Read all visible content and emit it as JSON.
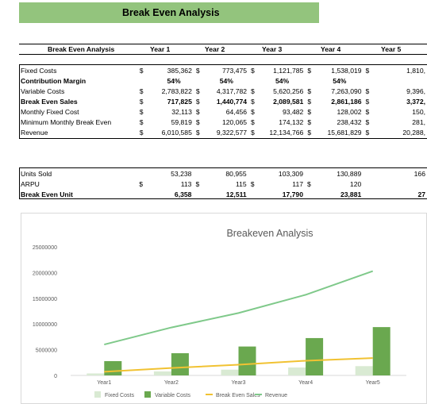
{
  "banner_title": "Break Even Analysis",
  "table_header": {
    "label": "Break Even Analysis",
    "years": [
      "Year 1",
      "Year 2",
      "Year 3",
      "Year 4",
      "Year 5"
    ]
  },
  "rows": [
    {
      "label": "Fixed Costs",
      "bold": false,
      "values": [
        "385,362",
        "773,475",
        "1,121,785",
        "1,538,019",
        "1,810,"
      ],
      "dollar": true
    },
    {
      "label": "Contribution Margin",
      "bold": true,
      "values": [
        "54%",
        "54%",
        "54%",
        "54%",
        ""
      ],
      "dollar": false,
      "pct": true
    },
    {
      "label": "Variable Costs",
      "bold": false,
      "values": [
        "2,783,822",
        "4,317,782",
        "5,620,256",
        "7,263,090",
        "9,396,"
      ],
      "dollar": true
    },
    {
      "label": "Break Even Sales",
      "bold": true,
      "values": [
        "717,825",
        "1,440,774",
        "2,089,581",
        "2,861,186",
        "3,372,"
      ],
      "dollar": true
    },
    {
      "label": "Monthly Fixed Cost",
      "bold": false,
      "values": [
        "32,113",
        "64,456",
        "93,482",
        "128,002",
        "150,"
      ],
      "dollar": true
    },
    {
      "label": "Minimum Monthly Break Even",
      "bold": false,
      "values": [
        "59,819",
        "120,065",
        "174,132",
        "238,432",
        "281,"
      ],
      "dollar": true
    },
    {
      "label": "Revenue",
      "bold": false,
      "values": [
        "6,010,585",
        "9,322,577",
        "12,134,766",
        "15,681,829",
        "20,288,"
      ],
      "dollar": true
    }
  ],
  "rows2": [
    {
      "label": "Units Sold",
      "bold": false,
      "values": [
        "53,238",
        "80,955",
        "103,309",
        "130,889",
        "166"
      ],
      "dollar": false
    },
    {
      "label": "ARPU",
      "bold": false,
      "values": [
        "113",
        "115",
        "117",
        "120",
        ""
      ],
      "dollar": true
    },
    {
      "label": "Break Even Unit",
      "bold": true,
      "values": [
        "6,358",
        "12,511",
        "17,790",
        "23,881",
        "27"
      ],
      "dollar": false
    }
  ],
  "currency_symbol": "$",
  "chart_data": {
    "type": "bar",
    "title": "Breakeven Analysis",
    "categories": [
      "Year1",
      "Year2",
      "Year3",
      "Year4",
      "Year5"
    ],
    "ylim": [
      0,
      25000000
    ],
    "yticks": [
      "25000000",
      "20000000",
      "15000000",
      "10000000",
      "5000000",
      "0"
    ],
    "grid": false,
    "legend_position": "bottom",
    "series": [
      {
        "name": "Fixed Costs",
        "kind": "bar",
        "color": "#d9ead3",
        "values": [
          385362,
          773475,
          1121785,
          1538019,
          1810000
        ]
      },
      {
        "name": "Variable Costs",
        "kind": "bar",
        "color": "#6aa84f",
        "values": [
          2783822,
          4317782,
          5620256,
          7263090,
          9396000
        ]
      },
      {
        "name": "Break Even Sales",
        "kind": "line",
        "color": "#f1c232",
        "values": [
          717825,
          1440774,
          2089581,
          2861186,
          3372000
        ]
      },
      {
        "name": "Revenue",
        "kind": "line",
        "color": "#7fc98a",
        "values": [
          6010585,
          9322577,
          12134766,
          15681829,
          20288000
        ]
      }
    ]
  }
}
